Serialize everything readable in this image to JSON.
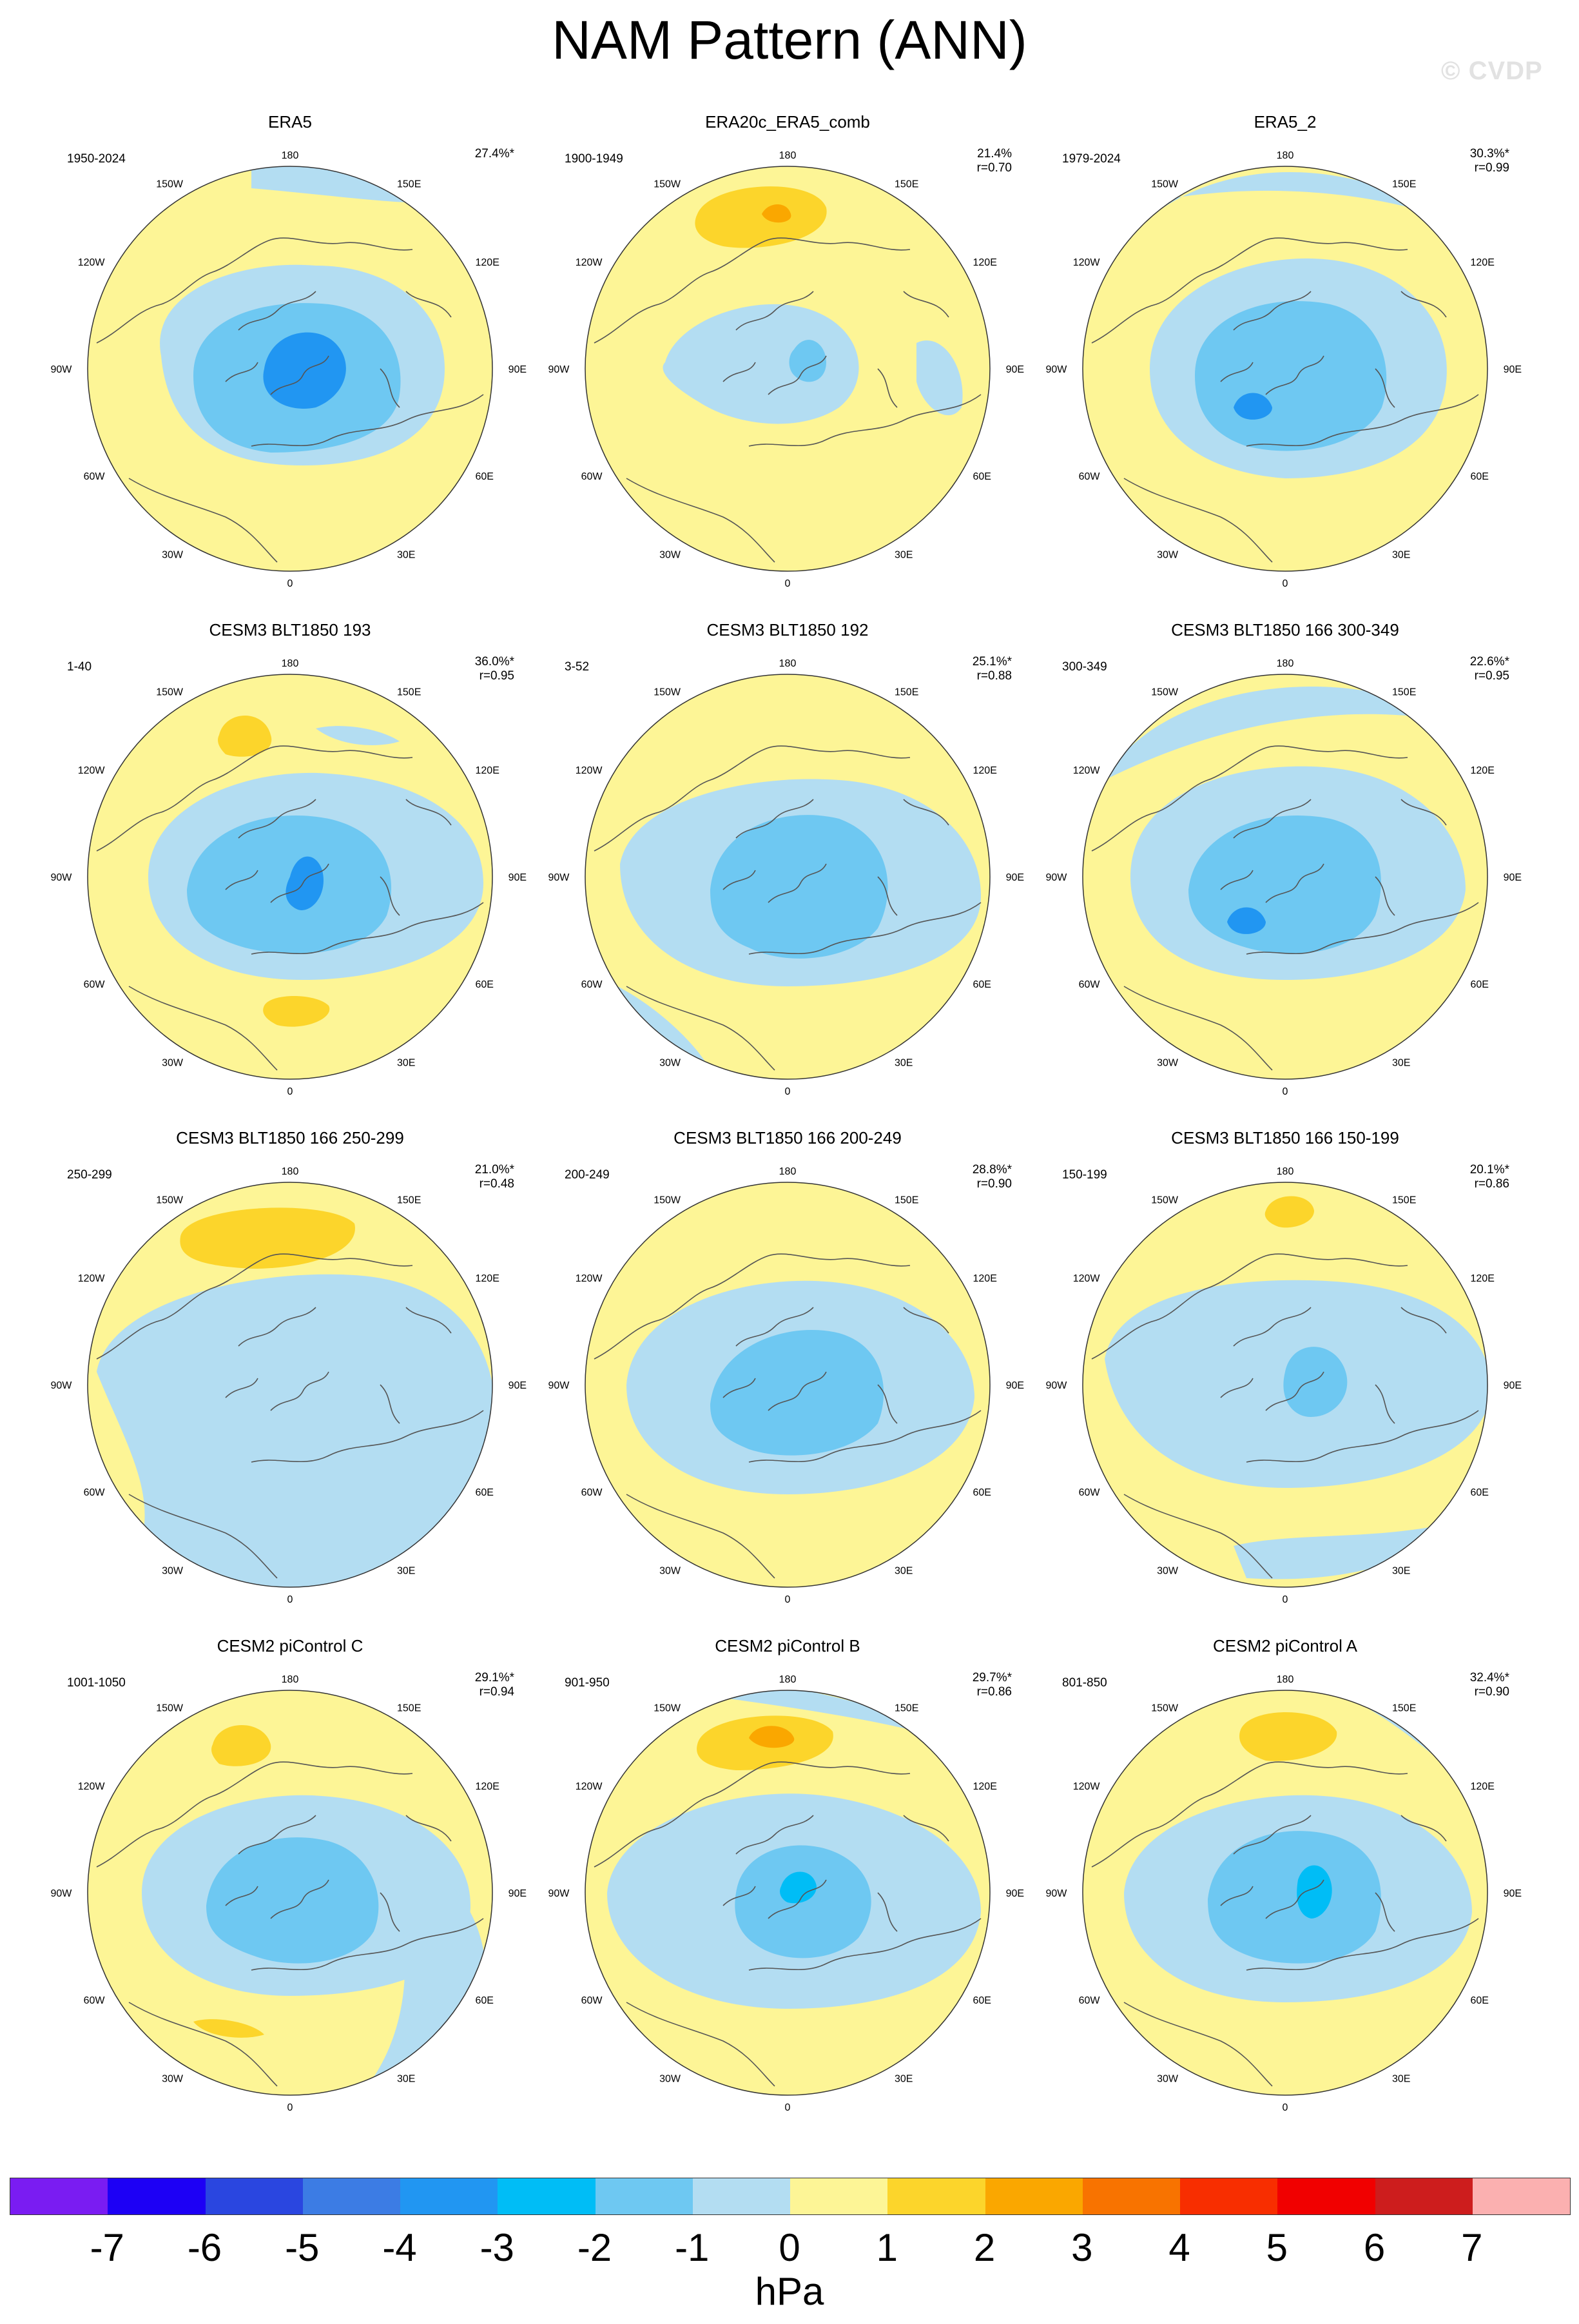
{
  "title": "NAM Pattern (ANN)",
  "watermark": "© CVDP",
  "units": "hPa",
  "colorbar": {
    "ticks": [
      "-7",
      "-6",
      "-5",
      "-4",
      "-3",
      "-2",
      "-1",
      "0",
      "1",
      "2",
      "3",
      "4",
      "5",
      "6",
      "7"
    ],
    "colors": [
      "#7a1cf2",
      "#1d00f5",
      "#2a46e0",
      "#3c7ce4",
      "#2196f2",
      "#00bdf6",
      "#6ec8f2",
      "#b3ddf2",
      "#fdf596",
      "#fcd52b",
      "#faa700",
      "#f87300",
      "#f82e00",
      "#f10000",
      "#cd1d1d",
      "#fbb0b0"
    ]
  },
  "longitude_labels": [
    "180",
    "150E",
    "120E",
    "90E",
    "60E",
    "30E",
    "0",
    "30W",
    "60W",
    "90W",
    "120W",
    "150W"
  ],
  "panels": [
    {
      "title": "ERA5",
      "period": "1950-2024",
      "pct": "27.4%*",
      "r": ""
    },
    {
      "title": "ERA20c_ERA5_comb",
      "period": "1900-1949",
      "pct": "21.4%",
      "r": "r=0.70"
    },
    {
      "title": "ERA5_2",
      "period": "1979-2024",
      "pct": "30.3%*",
      "r": "r=0.99"
    },
    {
      "title": "CESM3 BLT1850 193",
      "period": "1-40",
      "pct": "36.0%*",
      "r": "r=0.95"
    },
    {
      "title": "CESM3 BLT1850 192",
      "period": "3-52",
      "pct": "25.1%*",
      "r": "r=0.88"
    },
    {
      "title": "CESM3 BLT1850 166 300-349",
      "period": "300-349",
      "pct": "22.6%*",
      "r": "r=0.95"
    },
    {
      "title": "CESM3 BLT1850 166 250-299",
      "period": "250-299",
      "pct": "21.0%*",
      "r": "r=0.48"
    },
    {
      "title": "CESM3 BLT1850 166 200-249",
      "period": "200-249",
      "pct": "28.8%*",
      "r": "r=0.90"
    },
    {
      "title": "CESM3 BLT1850 166 150-199",
      "period": "150-199",
      "pct": "20.1%*",
      "r": "r=0.86"
    },
    {
      "title": "CESM2 piControl C",
      "period": "1001-1050",
      "pct": "29.1%*",
      "r": "r=0.94"
    },
    {
      "title": "CESM2 piControl B",
      "period": "901-950",
      "pct": "29.7%*",
      "r": "r=0.86"
    },
    {
      "title": "CESM2 piControl A",
      "period": "801-850",
      "pct": "32.4%*",
      "r": "r=0.90"
    }
  ]
}
